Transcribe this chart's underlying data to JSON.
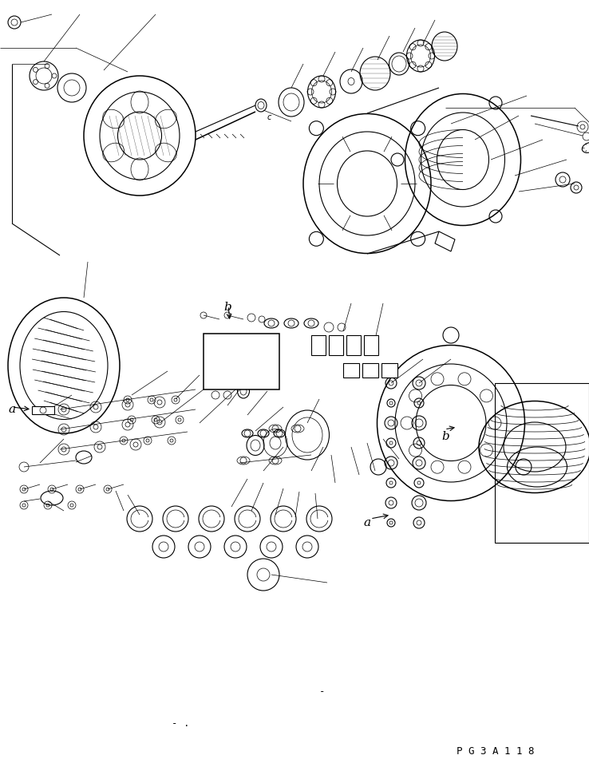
{
  "background_color": "#ffffff",
  "line_color": "#000000",
  "page_ref": "P G 3 A 1 1 8",
  "label_a1": "a",
  "label_a2": "a",
  "label_b1": "b",
  "label_b2": "b",
  "fig_width": 7.38,
  "fig_height": 9.56,
  "dpi": 100,
  "bottom_dash": "-",
  "bottom_dash2": "- ."
}
